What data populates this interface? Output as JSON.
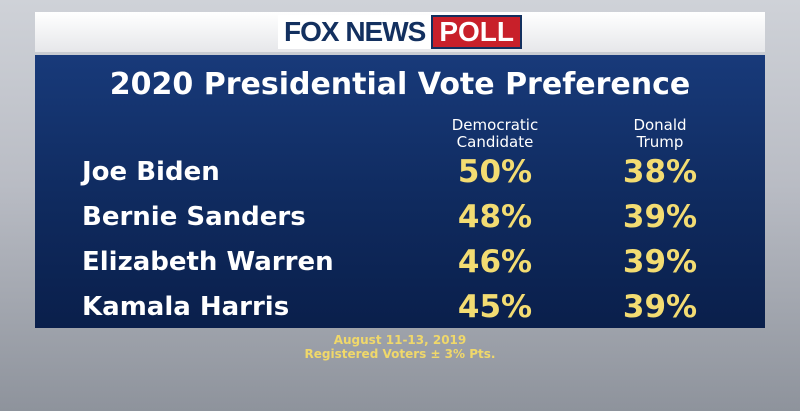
{
  "header": {
    "brand": "FOX NEWS",
    "badge": "POLL"
  },
  "title": "2020 Presidential Vote Preference",
  "table": {
    "columns": [
      [
        "Democratic",
        "Candidate"
      ],
      [
        "Donald",
        "Trump"
      ]
    ],
    "rows": [
      [
        "Joe Biden",
        "50%",
        "38%"
      ],
      [
        "Bernie Sanders",
        "48%",
        "39%"
      ],
      [
        "Elizabeth Warren",
        "46%",
        "39%"
      ],
      [
        "Kamala Harris",
        "45%",
        "39%"
      ]
    ]
  },
  "footer": {
    "dates": "August 11-13, 2019",
    "sample": "Registered Voters ± 3% Pts."
  }
}
